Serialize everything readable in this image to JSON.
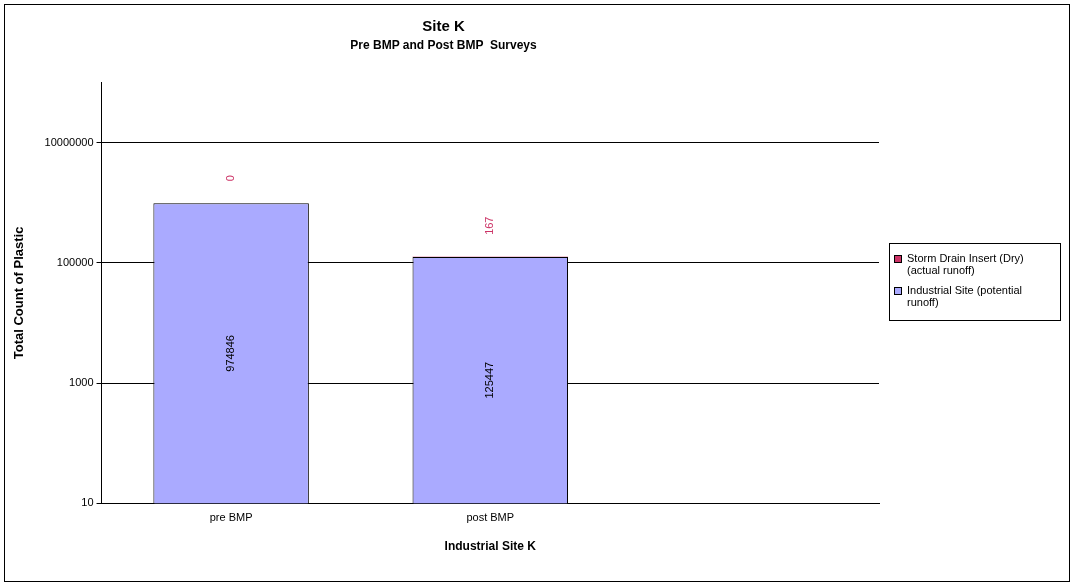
{
  "chart_data": {
    "type": "bar",
    "title": "Site K",
    "subtitle": "Pre BMP and Post BMP  Surveys",
    "xlabel": "Industrial Site K",
    "ylabel": "Total Count of Plastic",
    "categories": [
      "pre BMP",
      "post BMP",
      null
    ],
    "stacked": true,
    "log": true,
    "grid": "y",
    "legend": "right",
    "ylim": [
      10,
      100000000
    ],
    "yticks": [
      10,
      1000,
      100000,
      10000000
    ],
    "series": [
      {
        "name": "Industrial Site (potential runoff)",
        "color": "#aaaaff",
        "values": [
          974846,
          125447,
          null
        ],
        "value_labels": [
          "974846",
          "125447",
          null
        ]
      },
      {
        "name": "Storm Drain Insert (Dry) (actual runoff)",
        "color": "#cc3366",
        "values": [
          null,
          167,
          null
        ],
        "value_labels": [
          "0",
          "167",
          null
        ]
      }
    ]
  }
}
